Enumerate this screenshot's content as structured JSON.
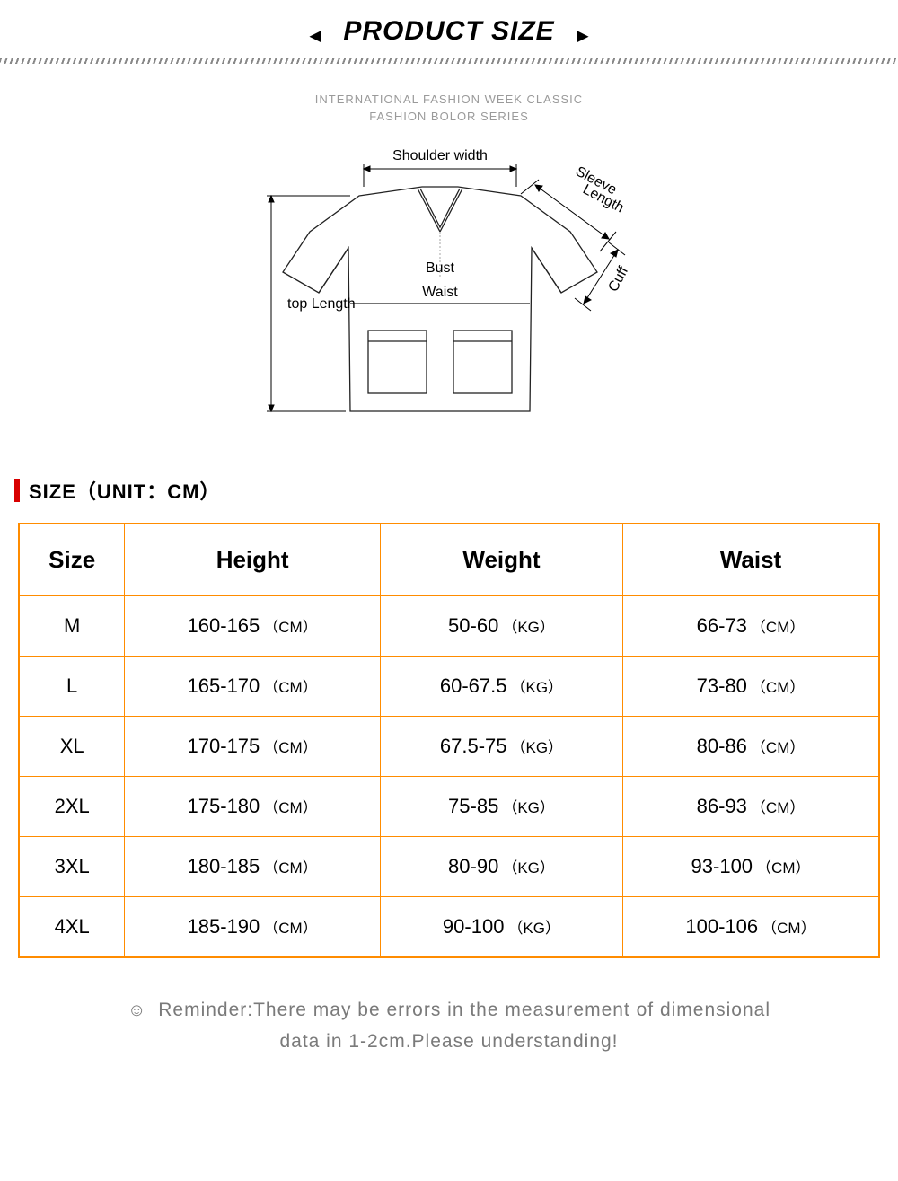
{
  "header": {
    "title": "PRODUCT SIZE",
    "left_arrow": "◄",
    "right_arrow": "►"
  },
  "diagram": {
    "caption_line1": "INTERNATIONAL FASHION WEEK CLASSIC",
    "caption_line2": "FASHION BOLOR SERIES",
    "labels": {
      "shoulder": "Shoulder width",
      "sleeve": "Sleeve Length",
      "cuff": "Cuff",
      "bust": "Bust",
      "waist": "Waist",
      "top_length": "top Length"
    },
    "colors": {
      "stroke": "#222222",
      "fill": "#ffffff",
      "text": "#000000"
    }
  },
  "section": {
    "label": "SIZE（UNIT：CM）",
    "bar_color": "#d80000"
  },
  "table": {
    "border_color": "#ff8c00",
    "columns": [
      "Size",
      "Height",
      "Weight",
      "Waist"
    ],
    "rows": [
      {
        "size": "M",
        "height": "160-165",
        "height_unit": "（CM）",
        "weight": "50-60",
        "weight_unit": "（KG）",
        "waist": "66-73",
        "waist_unit": "（CM）"
      },
      {
        "size": "L",
        "height": "165-170",
        "height_unit": "（CM）",
        "weight": "60-67.5",
        "weight_unit": "（KG）",
        "waist": "73-80",
        "waist_unit": "（CM）"
      },
      {
        "size": "XL",
        "height": "170-175",
        "height_unit": "（CM）",
        "weight": "67.5-75",
        "weight_unit": "（KG）",
        "waist": "80-86",
        "waist_unit": "（CM）"
      },
      {
        "size": "2XL",
        "height": "175-180",
        "height_unit": "（CM）",
        "weight": "75-85",
        "weight_unit": "（KG）",
        "waist": "86-93",
        "waist_unit": "（CM）"
      },
      {
        "size": "3XL",
        "height": "180-185",
        "height_unit": "（CM）",
        "weight": "80-90",
        "weight_unit": "（KG）",
        "waist": "93-100",
        "waist_unit": "（CM）"
      },
      {
        "size": "4XL",
        "height": "185-190",
        "height_unit": "（CM）",
        "weight": "90-100",
        "weight_unit": "（KG）",
        "waist": "100-106",
        "waist_unit": "（CM）"
      }
    ]
  },
  "reminder": {
    "icon": "☺",
    "text_line1": "Reminder:There may be errors in the measurement of dimensional",
    "text_line2": "data in 1-2cm.Please understanding!"
  }
}
